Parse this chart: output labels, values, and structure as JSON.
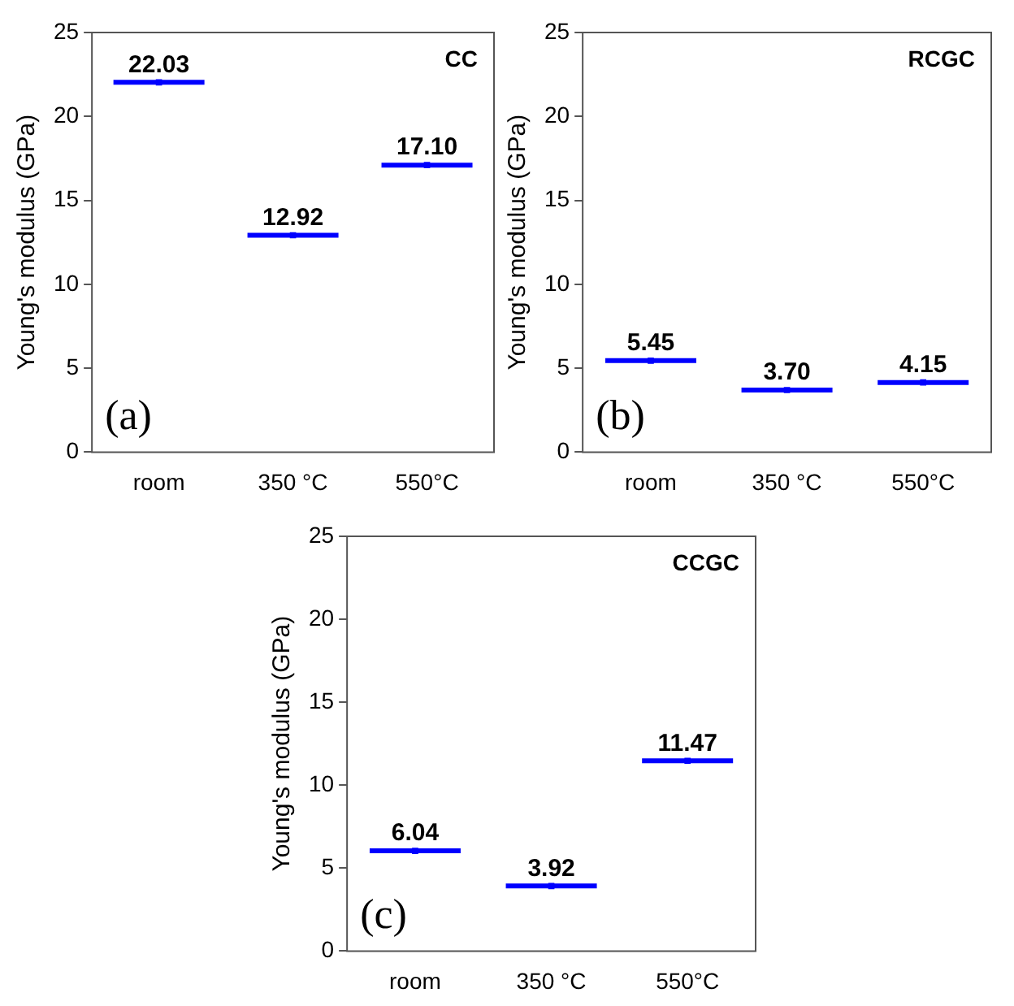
{
  "chart_data": [
    {
      "type": "scatter",
      "title": "CC",
      "ylabel": "Young's modulus (GPa)",
      "categories": [
        "room",
        "350 °C",
        "550°C"
      ],
      "series": [
        {
          "color": "#0000ff",
          "values": [
            22.03,
            12.92,
            17.1
          ],
          "value_labels": [
            "22.03",
            "12.92",
            "17.10"
          ]
        }
      ],
      "ylim": [
        0,
        25
      ],
      "yticks": [
        0,
        5,
        10,
        15,
        20,
        25
      ],
      "grid": false,
      "legend": false,
      "annotations": [
        "(a)"
      ]
    },
    {
      "type": "scatter",
      "title": "RCGC",
      "ylabel": "Young's modulus (GPa)",
      "categories": [
        "room",
        "350 °C",
        "550°C"
      ],
      "series": [
        {
          "color": "#0000ff",
          "values": [
            5.45,
            3.7,
            4.15
          ],
          "value_labels": [
            "5.45",
            "3.70",
            "4.15"
          ]
        }
      ],
      "ylim": [
        0,
        25
      ],
      "yticks": [
        0,
        5,
        10,
        15,
        20,
        25
      ],
      "grid": false,
      "legend": false,
      "annotations": [
        "(b)"
      ]
    },
    {
      "type": "scatter",
      "title": "CCGC",
      "ylabel": "Young's modulus (GPa)",
      "categories": [
        "room",
        "350 °C",
        "550°C"
      ],
      "series": [
        {
          "color": "#0000ff",
          "values": [
            6.04,
            3.92,
            11.47
          ],
          "value_labels": [
            "6.04",
            "3.92",
            "11.47"
          ]
        }
      ],
      "ylim": [
        0,
        25
      ],
      "yticks": [
        0,
        5,
        10,
        15,
        20,
        25
      ],
      "grid": false,
      "legend": false,
      "annotations": [
        "(c)"
      ]
    }
  ]
}
